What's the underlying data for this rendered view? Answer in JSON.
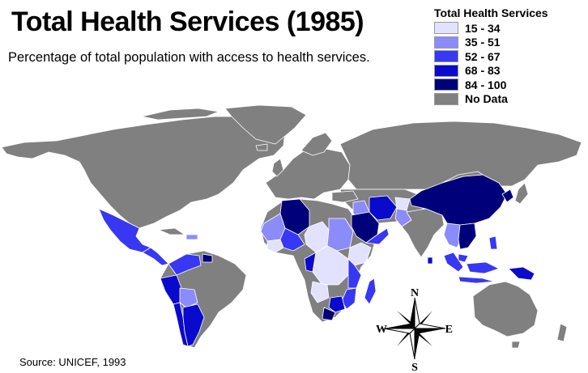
{
  "title": "Total Health Services (1985)",
  "subtitle": "Percentage of total population with access to health services.",
  "source": "Source: UNICEF, 1993",
  "legend": {
    "title": "Total Health Services",
    "items": [
      {
        "label": "15 - 34",
        "color": "#e2e2fe"
      },
      {
        "label": "35 - 51",
        "color": "#8b8bfa"
      },
      {
        "label": "52 - 67",
        "color": "#3737f4"
      },
      {
        "label": "68 - 83",
        "color": "#0a0acc"
      },
      {
        "label": "84 - 100",
        "color": "#00007a"
      },
      {
        "label": "No Data",
        "color": "#808080"
      }
    ]
  },
  "compass": {
    "n": "N",
    "s": "S",
    "e": "E",
    "w": "W"
  },
  "colors": {
    "land": "#808080",
    "border": "#ffffff",
    "ocean": "#ffffff"
  }
}
